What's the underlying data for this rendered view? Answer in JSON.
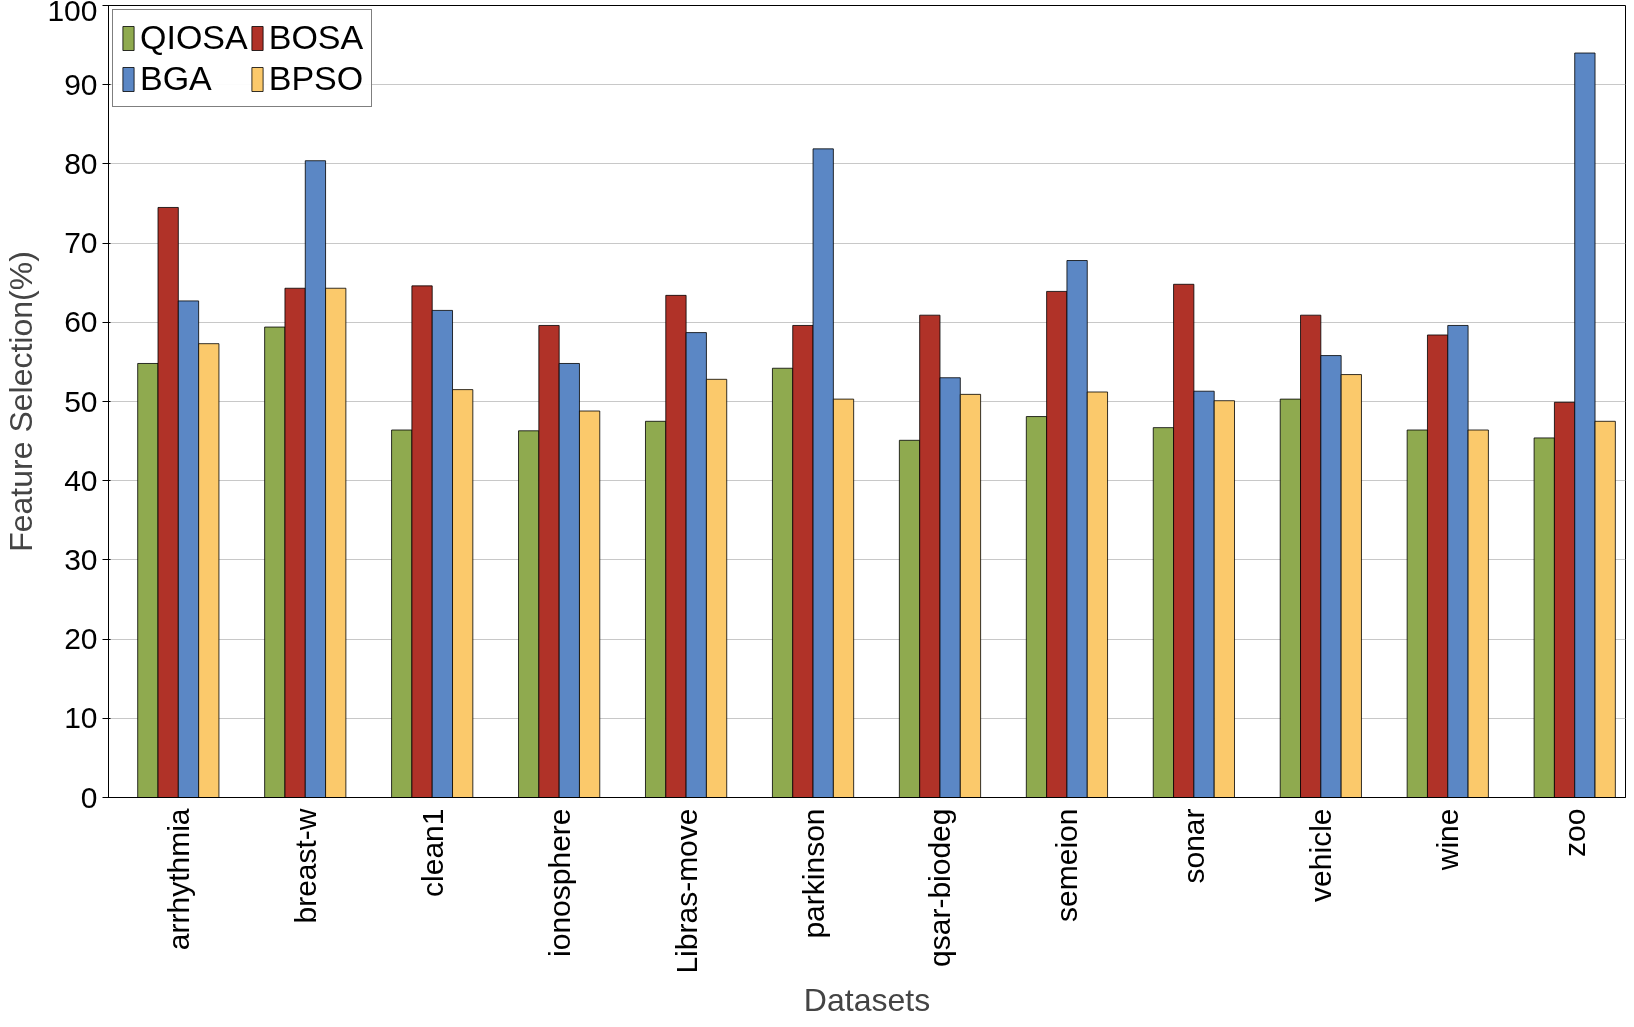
{
  "chart_data": {
    "type": "bar",
    "xlabel": "Datasets",
    "ylabel": "Feature Selection(%)",
    "categories": [
      "arrhythmia",
      "breast-w",
      "clean1",
      "ionosphere",
      "Libras-move",
      "parkinson",
      "qsar-biodeg",
      "semeion",
      "sonar",
      "vehicle",
      "wine",
      "zoo"
    ],
    "series": [
      {
        "name": "QIOSA",
        "color": "#8faa4f",
        "values": [
          54.8,
          59.4,
          46.4,
          46.3,
          47.5,
          54.2,
          45.1,
          48.1,
          46.7,
          50.3,
          46.4,
          45.4
        ]
      },
      {
        "name": "BOSA",
        "color": "#b03228",
        "values": [
          74.5,
          64.3,
          64.6,
          59.6,
          63.4,
          59.6,
          60.9,
          63.9,
          64.8,
          60.9,
          58.4,
          49.9
        ]
      },
      {
        "name": "BGA",
        "color": "#5b87c5",
        "values": [
          62.7,
          80.4,
          61.5,
          54.8,
          58.7,
          81.9,
          53.0,
          67.8,
          51.3,
          55.8,
          59.6,
          94.0
        ]
      },
      {
        "name": "BPSO",
        "color": "#fbc96b",
        "values": [
          57.3,
          64.3,
          51.5,
          48.8,
          52.8,
          50.3,
          50.9,
          51.2,
          50.1,
          53.4,
          46.4,
          47.5
        ]
      }
    ],
    "ylim": [
      0,
      100
    ],
    "yticks": [
      0,
      10,
      20,
      30,
      40,
      50,
      60,
      70,
      80,
      90,
      100
    ],
    "grid": "y",
    "legend": "top left"
  }
}
